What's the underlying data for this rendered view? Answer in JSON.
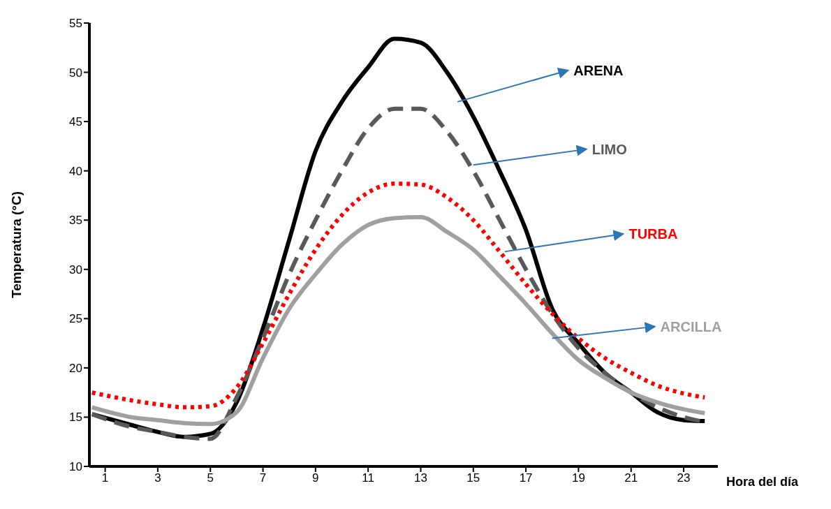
{
  "chart_data": {
    "type": "line",
    "xlabel": "Hora del día",
    "ylabel": "Temperatura (°C)",
    "x": [
      0.5,
      2,
      3,
      4,
      5,
      6,
      7,
      8,
      9,
      10,
      11,
      12,
      13,
      14,
      15,
      16,
      17,
      18,
      19,
      20,
      21,
      22,
      23,
      23.8
    ],
    "xlim": [
      0.4,
      24.3
    ],
    "xticks": [
      1,
      3,
      5,
      7,
      9,
      11,
      13,
      15,
      17,
      19,
      21,
      23
    ],
    "ylim": [
      10,
      55
    ],
    "yticks": [
      10,
      15,
      20,
      25,
      30,
      35,
      40,
      45,
      50,
      55
    ],
    "grid": false,
    "legend": false,
    "marker": "none",
    "series": [
      {
        "name": "ARENA",
        "color": "#000000",
        "line_style": "solid",
        "values": [
          15.3,
          14.2,
          13.5,
          13,
          13.3,
          16.5,
          24,
          33,
          42,
          47,
          50.5,
          53.4,
          53,
          50,
          45.5,
          40,
          34,
          26,
          22.5,
          19.5,
          17.5,
          15.5,
          14.7,
          14.6
        ]
      },
      {
        "name": "LIMO",
        "color": "#595959",
        "line_style": "dashed",
        "values": [
          15.3,
          14,
          13.5,
          13,
          12.8,
          17,
          23,
          29.5,
          35,
          40,
          44.3,
          46.3,
          46.3,
          44,
          40,
          35,
          30,
          25.5,
          22,
          19.5,
          17.5,
          16,
          15,
          14.5
        ]
      },
      {
        "name": "TURBA",
        "color": "#ff0000",
        "line_style": "dotted",
        "values": [
          17.5,
          16.7,
          16.3,
          16,
          16.1,
          18,
          22.5,
          27.5,
          32,
          35.5,
          37.8,
          38.7,
          38.6,
          37.3,
          35,
          31.8,
          28.5,
          25.5,
          23,
          21,
          19.5,
          18.2,
          17.4,
          17
        ]
      },
      {
        "name": "ARCILLA",
        "color": "#a0a0a0",
        "line_style": "solid",
        "values": [
          16,
          15,
          14.7,
          14.4,
          14.3,
          15.5,
          21,
          26,
          29.5,
          32.5,
          34.5,
          35.2,
          35.3,
          33.8,
          32,
          29.3,
          26.5,
          23.5,
          20.8,
          19,
          17.5,
          16.5,
          15.8,
          15.4
        ]
      }
    ]
  }
}
